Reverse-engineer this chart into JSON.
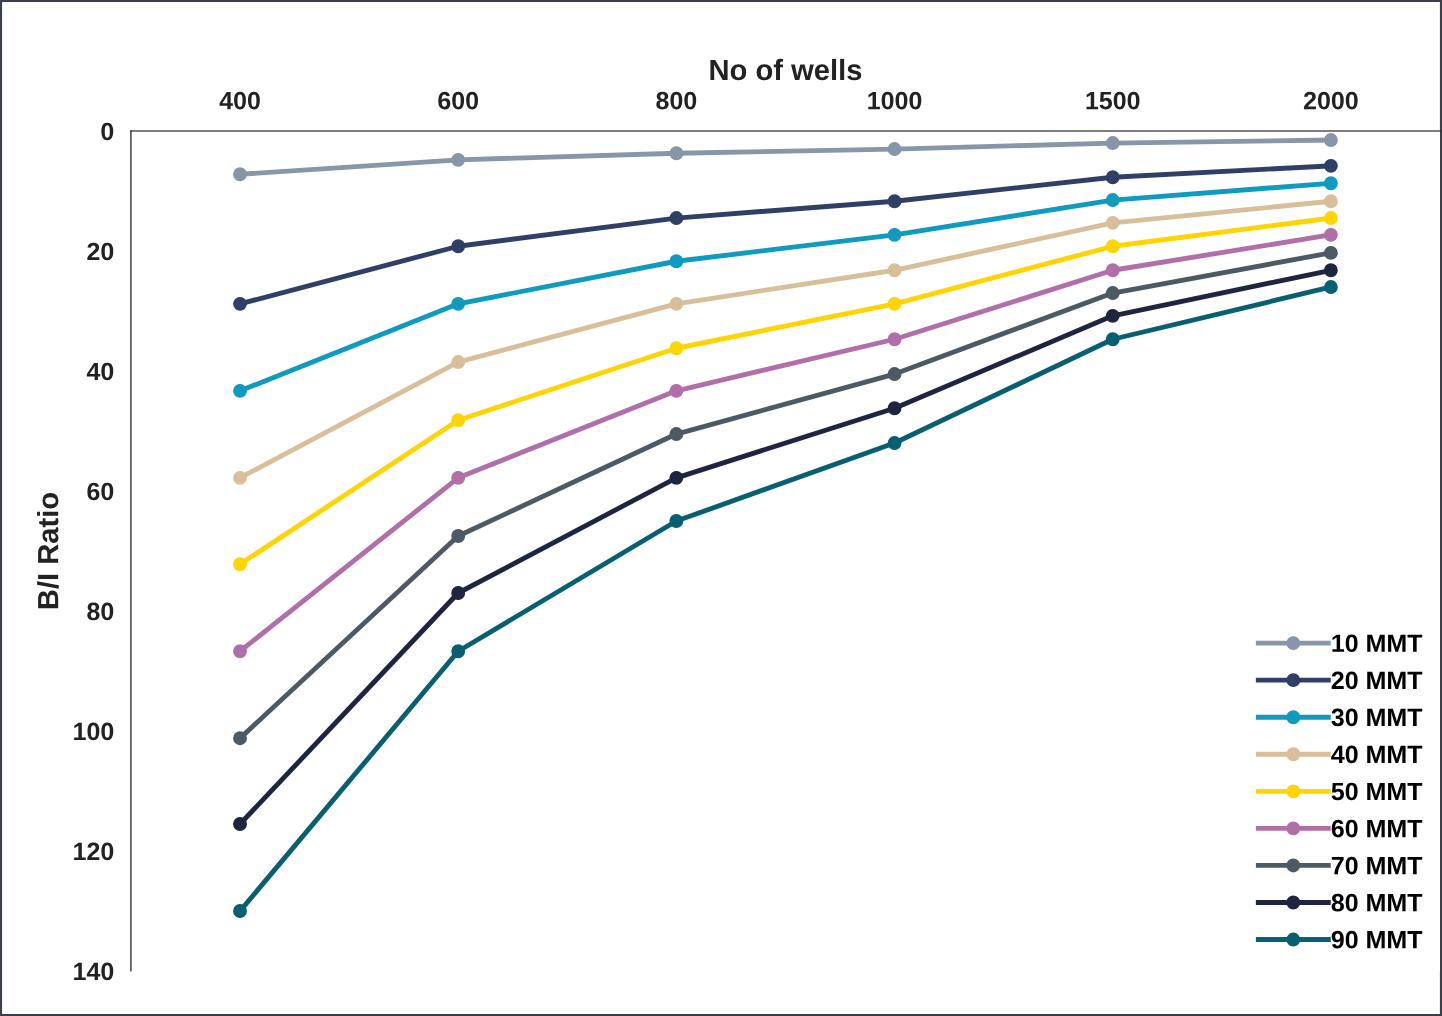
{
  "chart_data": {
    "type": "line",
    "xlabel": "No of wells",
    "ylabel": "B/I Ratio",
    "categories": [
      "400",
      "600",
      "800",
      "1000",
      "1500",
      "2000"
    ],
    "ylim": [
      140,
      0
    ],
    "yticks": [
      0,
      20,
      40,
      60,
      80,
      100,
      120,
      140
    ],
    "grid": false,
    "legend": "bottom right",
    "marker": "circle",
    "line_style": "solid",
    "series": [
      {
        "name": "10 MMT",
        "color": "#8796a8",
        "values": [
          7.2,
          4.8,
          3.7,
          3.0,
          2.0,
          1.5
        ]
      },
      {
        "name": "20 MMT",
        "color": "#2f3f66",
        "values": [
          28.8,
          19.2,
          14.5,
          11.7,
          7.7,
          5.8
        ]
      },
      {
        "name": "30 MMT",
        "color": "#0f9abf",
        "values": [
          43.3,
          28.8,
          21.7,
          17.3,
          11.5,
          8.7
        ]
      },
      {
        "name": "40 MMT",
        "color": "#d8bf9a",
        "values": [
          57.8,
          38.5,
          28.8,
          23.2,
          15.3,
          11.7
        ]
      },
      {
        "name": "50 MMT",
        "color": "#ffd400",
        "values": [
          72.2,
          48.2,
          36.2,
          28.8,
          19.2,
          14.5
        ]
      },
      {
        "name": "60 MMT",
        "color": "#b16fa9",
        "values": [
          86.7,
          57.8,
          43.3,
          34.7,
          23.2,
          17.3
        ]
      },
      {
        "name": "70 MMT",
        "color": "#4d5a66",
        "values": [
          101.2,
          67.5,
          50.5,
          40.5,
          27.0,
          20.3
        ]
      },
      {
        "name": "80 MMT",
        "color": "#1f2540",
        "values": [
          115.5,
          77.0,
          57.8,
          46.2,
          30.8,
          23.2
        ]
      },
      {
        "name": "90 MMT",
        "color": "#085f72",
        "values": [
          130.0,
          86.7,
          65.0,
          52.0,
          34.7,
          26.0
        ]
      }
    ]
  }
}
